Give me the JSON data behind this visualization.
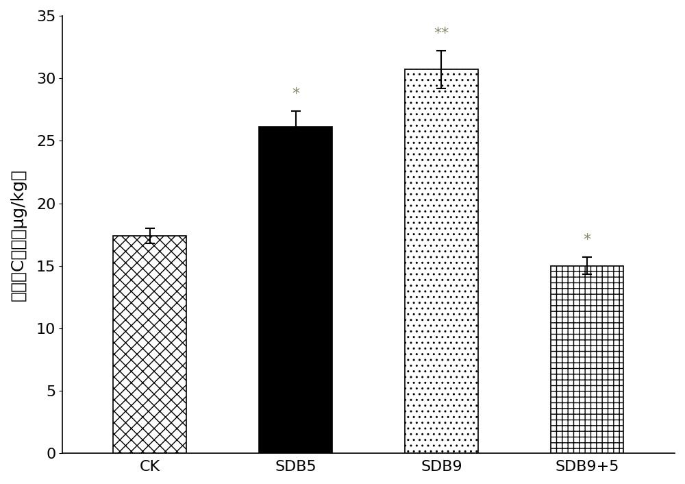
{
  "categories": [
    "CK",
    "SDB5",
    "SDB9",
    "SDB9+5"
  ],
  "values": [
    17.4,
    26.1,
    30.7,
    15.0
  ],
  "errors": [
    0.6,
    1.3,
    1.5,
    0.7
  ],
  "ylabel": "维生素C含量（μg/kg）",
  "ylim": [
    0,
    35
  ],
  "yticks": [
    0,
    5,
    10,
    15,
    20,
    25,
    30,
    35
  ],
  "significance": [
    "",
    "*",
    "**",
    "*"
  ],
  "sig_color": "#8B8B6B",
  "background_color": "#ffffff",
  "bar_edge_color": "#000000",
  "bar_width": 0.5,
  "ylabel_fontsize": 18,
  "tick_fontsize": 16,
  "sig_fontsize": 16
}
